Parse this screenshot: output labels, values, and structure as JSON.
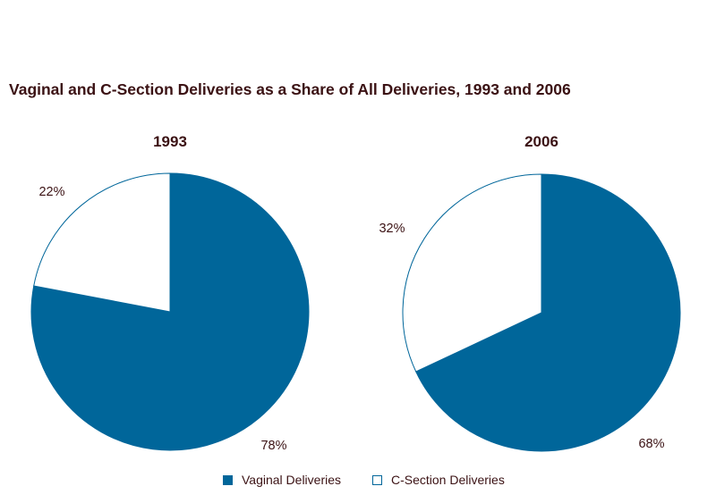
{
  "chart_data": [
    {
      "type": "pie",
      "title": "1993",
      "categories": [
        "Vaginal Deliveries",
        "C-Section Deliveries"
      ],
      "values": [
        78,
        22
      ],
      "labels": [
        "78%",
        "22%"
      ]
    },
    {
      "type": "pie",
      "title": "2006",
      "categories": [
        "Vaginal Deliveries",
        "C-Section Deliveries"
      ],
      "values": [
        68,
        32
      ],
      "labels": [
        "68%",
        "32%"
      ]
    }
  ],
  "title": "Vaginal and C-Section Deliveries as a Share of All Deliveries, 1993 and 2006",
  "legend": [
    {
      "label": "Vaginal Deliveries",
      "color": "#00669a"
    },
    {
      "label": "C-Section Deliveries",
      "color": "#ffffff"
    }
  ],
  "colors": {
    "vaginal": "#00669a",
    "csection": "#ffffff",
    "text": "#3b1214"
  }
}
